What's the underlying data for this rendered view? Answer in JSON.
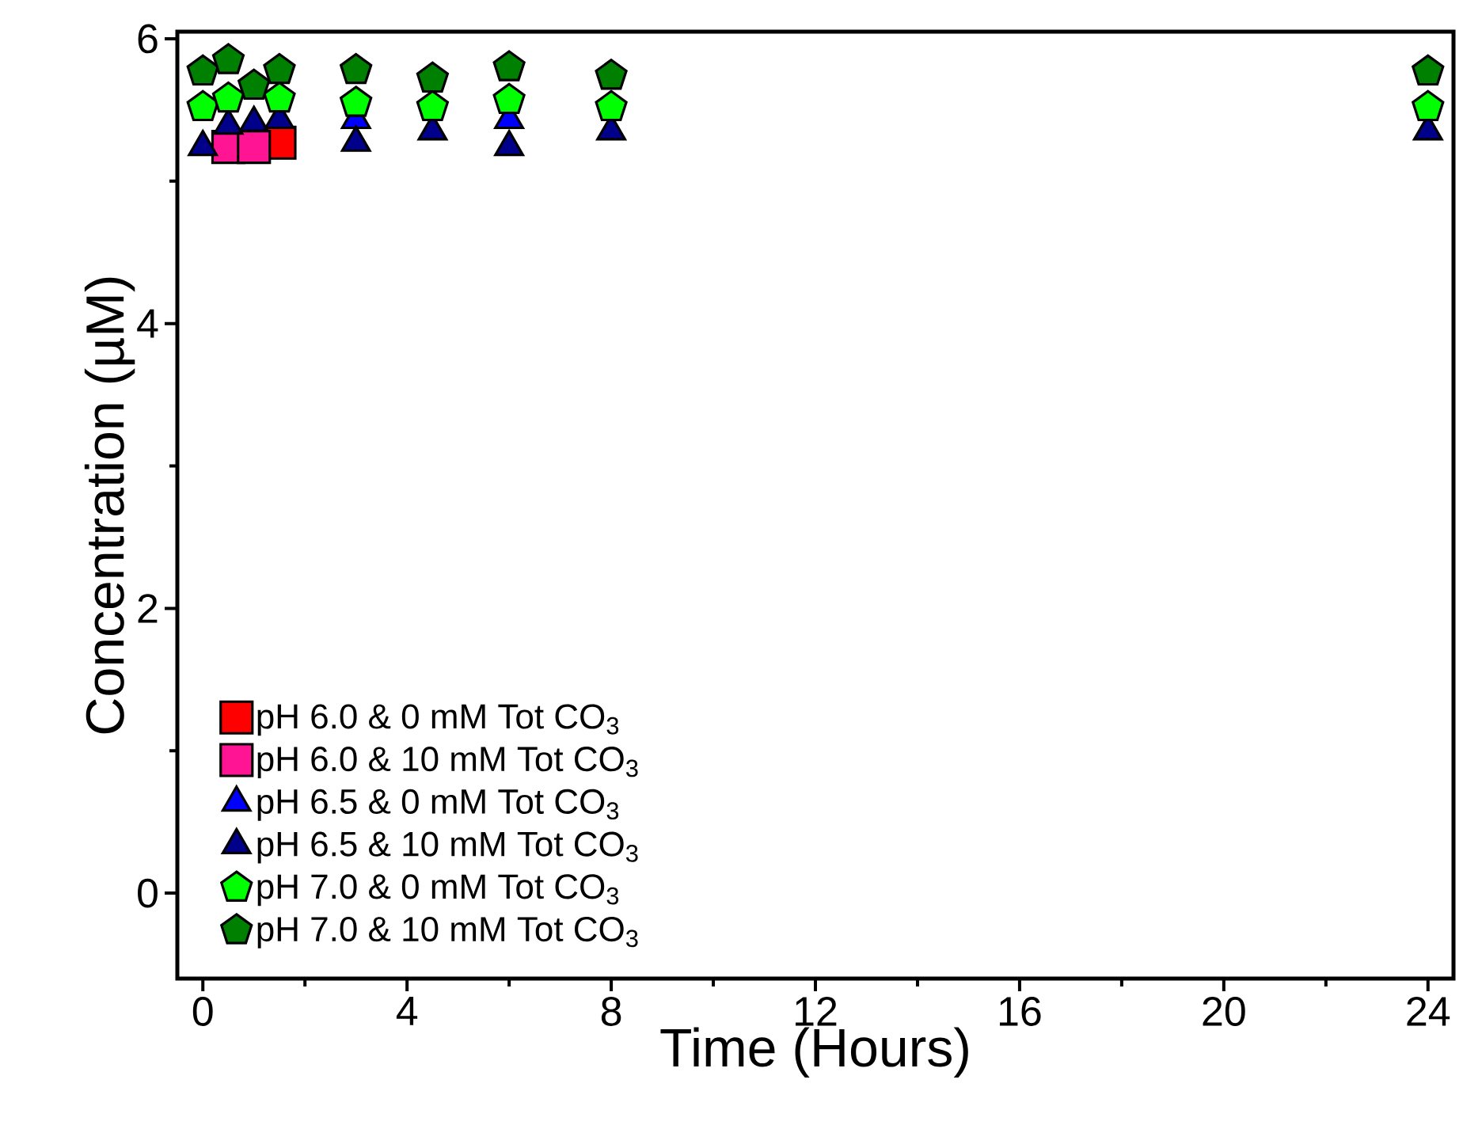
{
  "chart_data": {
    "type": "scatter",
    "xlabel": "Time (Hours)",
    "ylabel": "Concentration (µM)",
    "xlim": [
      -0.5,
      24.5
    ],
    "ylim": [
      -0.6,
      6.05
    ],
    "xticks": [
      0,
      4,
      8,
      12,
      16,
      20,
      24
    ],
    "yticks": [
      0,
      2,
      4,
      6
    ],
    "legend": "bottom left",
    "grid": false,
    "x": [
      0,
      0.5,
      1,
      1.5,
      3,
      4.5,
      6,
      8,
      24
    ],
    "series": [
      {
        "name": "pH 6.0 & 0 mM Tot CO$_{3}$",
        "color": "#ff0000",
        "marker": "square",
        "values": [
          null,
          null,
          null,
          5.27,
          null,
          null,
          null,
          null,
          null
        ]
      },
      {
        "name": "pH 6.0 & 10 mM Tot CO$_{3}$",
        "color": "#ff1493",
        "marker": "square",
        "values": [
          null,
          5.24,
          5.24,
          null,
          null,
          null,
          null,
          null,
          null
        ]
      },
      {
        "name": "pH 6.5 & 0 mM Tot CO$_{3}$",
        "color": "#0000ff",
        "marker": "triangle",
        "values": [
          null,
          null,
          null,
          null,
          5.43,
          null,
          5.43,
          null,
          null
        ]
      },
      {
        "name": "pH 6.5 & 10 mM Tot CO$_{3}$",
        "color": "#00008b",
        "marker": "triangle",
        "values": [
          5.24,
          5.39,
          5.41,
          5.43,
          5.27,
          5.35,
          5.24,
          5.35,
          5.35
        ]
      },
      {
        "name": "pH 7.0 & 0 mM Tot CO$_{3}$",
        "color": "#00ff00",
        "values": [
          5.52,
          5.58,
          null,
          5.58,
          5.55,
          5.52,
          5.57,
          5.52,
          5.52
        ]
      },
      {
        "name": "pH 7.0 & 10 mM Tot CO$_{3}$",
        "color": "#008000",
        "values": [
          5.77,
          5.85,
          5.67,
          5.78,
          5.78,
          5.72,
          5.8,
          5.74,
          5.77
        ]
      }
    ]
  }
}
